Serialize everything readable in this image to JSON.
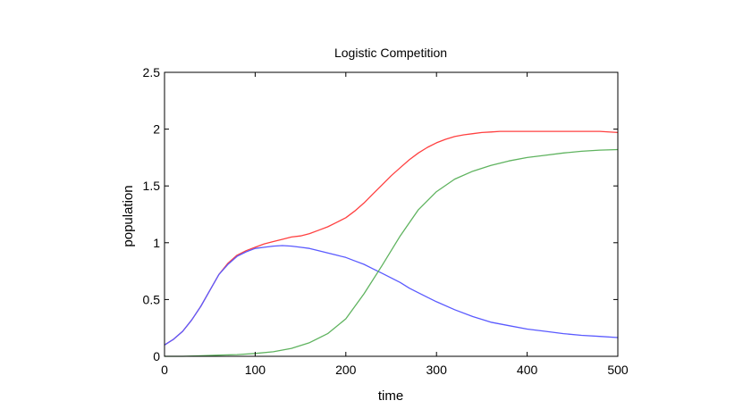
{
  "chart_data": {
    "type": "line",
    "title": "Logistic Competition",
    "xlabel": "time",
    "ylabel": "population",
    "xlim": [
      0,
      500
    ],
    "ylim": [
      0,
      2.5
    ],
    "xticks": [
      "0",
      "100",
      "200",
      "300",
      "400",
      "500"
    ],
    "yticks": [
      "0",
      "0.5",
      "1",
      "1.5",
      "2",
      "2.5"
    ],
    "grid": false,
    "series": [
      {
        "color": "#ff4040",
        "x": [
          0,
          10,
          20,
          30,
          40,
          50,
          60,
          70,
          80,
          90,
          100,
          110,
          120,
          130,
          140,
          150,
          160,
          170,
          180,
          190,
          200,
          210,
          220,
          230,
          240,
          250,
          260,
          270,
          280,
          290,
          300,
          310,
          320,
          330,
          340,
          350,
          360,
          370,
          380,
          390,
          400,
          420,
          440,
          460,
          480,
          500
        ],
        "y": [
          0.1,
          0.15,
          0.22,
          0.32,
          0.44,
          0.58,
          0.72,
          0.82,
          0.89,
          0.93,
          0.96,
          0.99,
          1.01,
          1.03,
          1.05,
          1.06,
          1.08,
          1.11,
          1.14,
          1.18,
          1.22,
          1.28,
          1.35,
          1.43,
          1.51,
          1.59,
          1.66,
          1.73,
          1.79,
          1.84,
          1.88,
          1.91,
          1.935,
          1.95,
          1.96,
          1.97,
          1.975,
          1.98,
          1.98,
          1.98,
          1.98,
          1.98,
          1.98,
          1.98,
          1.98,
          1.97
        ]
      },
      {
        "color": "#5a5aff",
        "x": [
          0,
          10,
          20,
          30,
          40,
          50,
          60,
          70,
          80,
          90,
          100,
          110,
          120,
          130,
          140,
          150,
          160,
          170,
          180,
          190,
          200,
          210,
          220,
          230,
          240,
          250,
          260,
          270,
          280,
          290,
          300,
          320,
          340,
          360,
          380,
          400,
          420,
          440,
          460,
          480,
          500
        ],
        "y": [
          0.1,
          0.15,
          0.22,
          0.32,
          0.44,
          0.58,
          0.72,
          0.81,
          0.88,
          0.92,
          0.95,
          0.96,
          0.97,
          0.975,
          0.97,
          0.96,
          0.95,
          0.93,
          0.91,
          0.89,
          0.87,
          0.84,
          0.81,
          0.77,
          0.73,
          0.69,
          0.65,
          0.6,
          0.56,
          0.52,
          0.48,
          0.41,
          0.35,
          0.3,
          0.27,
          0.24,
          0.22,
          0.2,
          0.185,
          0.175,
          0.165
        ]
      },
      {
        "color": "#5fb35f",
        "x": [
          0,
          20,
          40,
          60,
          80,
          100,
          120,
          140,
          160,
          180,
          200,
          220,
          240,
          260,
          280,
          300,
          320,
          340,
          360,
          380,
          400,
          420,
          440,
          460,
          480,
          500
        ],
        "y": [
          0.0,
          0.0,
          0.005,
          0.01,
          0.015,
          0.025,
          0.04,
          0.07,
          0.12,
          0.2,
          0.33,
          0.55,
          0.8,
          1.06,
          1.29,
          1.45,
          1.56,
          1.63,
          1.68,
          1.72,
          1.75,
          1.77,
          1.79,
          1.805,
          1.815,
          1.82
        ]
      }
    ]
  }
}
